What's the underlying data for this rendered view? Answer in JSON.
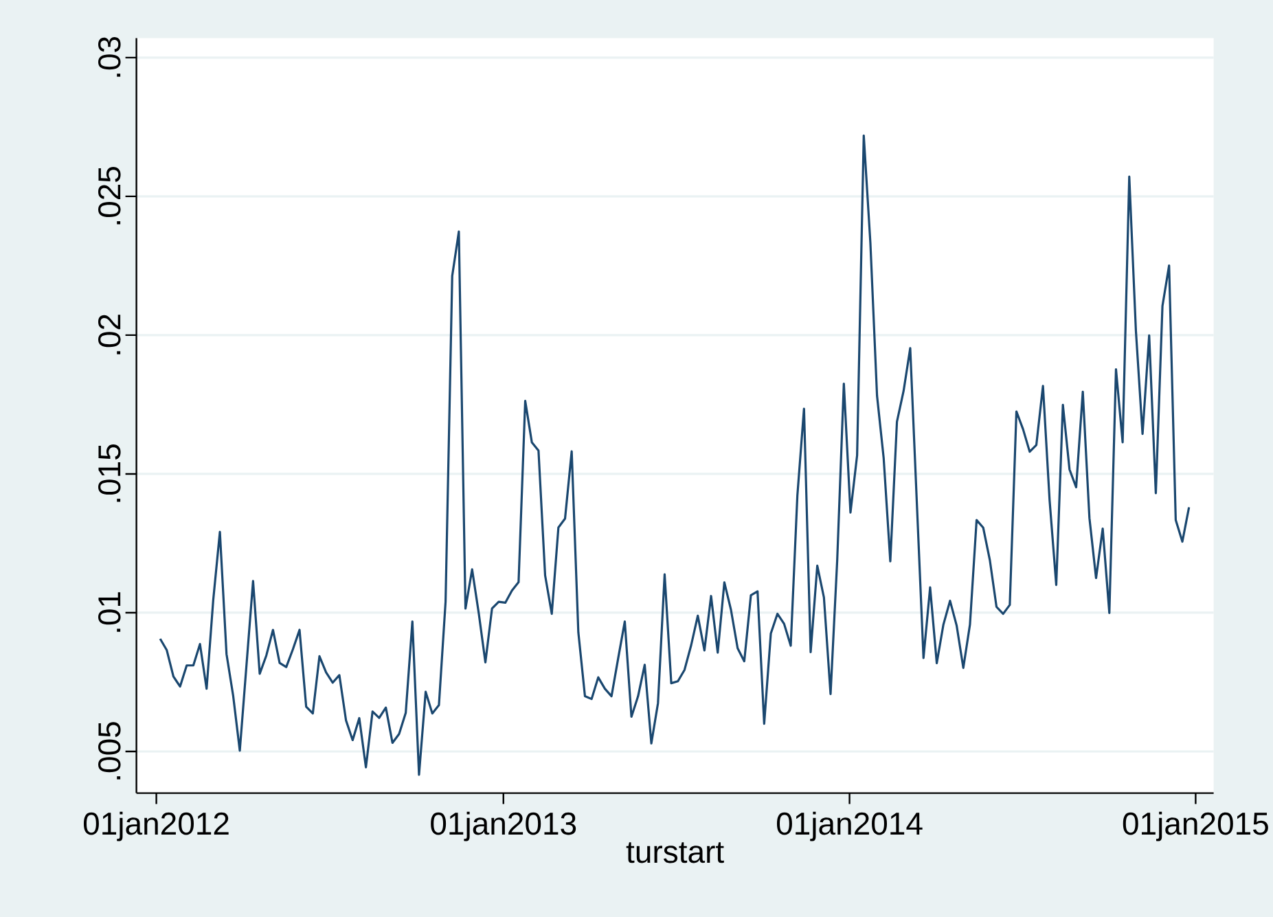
{
  "chart_data": {
    "type": "line",
    "xlabel": "turstart",
    "grid": "y",
    "xlim": [
      "2011-12-11",
      "2015-01-20"
    ],
    "ylim": [
      0.0035,
      0.0307
    ],
    "xticks": [
      {
        "value": "2012-01-01",
        "label": "01jan2012"
      },
      {
        "value": "2013-01-01",
        "label": "01jan2013"
      },
      {
        "value": "2014-01-01",
        "label": "01jan2014"
      },
      {
        "value": "2015-01-01",
        "label": "01jan2015"
      }
    ],
    "yticks": [
      {
        "value": 0.005,
        "label": ".005"
      },
      {
        "value": 0.01,
        "label": ".01"
      },
      {
        "value": 0.015,
        "label": ".015"
      },
      {
        "value": 0.02,
        "label": ".02"
      },
      {
        "value": 0.025,
        "label": ".025"
      },
      {
        "value": 0.03,
        "label": ".03"
      }
    ],
    "series": [
      {
        "color": "#1a476f",
        "x": [
          "2012-01-05",
          "2012-01-12",
          "2012-01-19",
          "2012-01-26",
          "2012-02-02",
          "2012-02-09",
          "2012-02-16",
          "2012-02-23",
          "2012-03-01",
          "2012-03-08",
          "2012-03-15",
          "2012-03-22",
          "2012-03-29",
          "2012-04-12",
          "2012-04-19",
          "2012-04-26",
          "2012-05-03",
          "2012-05-10",
          "2012-05-17",
          "2012-05-24",
          "2012-05-31",
          "2012-06-07",
          "2012-06-14",
          "2012-06-21",
          "2012-06-28",
          "2012-07-05",
          "2012-07-12",
          "2012-07-19",
          "2012-07-26",
          "2012-08-02",
          "2012-08-09",
          "2012-08-16",
          "2012-08-23",
          "2012-08-30",
          "2012-09-06",
          "2012-09-13",
          "2012-09-20",
          "2012-09-27",
          "2012-10-04",
          "2012-10-11",
          "2012-10-18",
          "2012-10-25",
          "2012-11-01",
          "2012-11-08",
          "2012-11-15",
          "2012-11-22",
          "2012-11-29",
          "2012-12-06",
          "2012-12-13",
          "2012-12-20",
          "2012-12-27",
          "2013-01-03",
          "2013-01-10",
          "2013-01-17",
          "2013-01-24",
          "2013-01-31",
          "2013-02-07",
          "2013-02-14",
          "2013-02-21",
          "2013-02-28",
          "2013-03-07",
          "2013-03-14",
          "2013-03-21",
          "2013-03-28",
          "2013-04-04",
          "2013-04-11",
          "2013-04-18",
          "2013-04-25",
          "2013-05-02",
          "2013-05-09",
          "2013-05-16",
          "2013-05-23",
          "2013-05-30",
          "2013-06-06",
          "2013-06-13",
          "2013-06-20",
          "2013-06-27",
          "2013-07-04",
          "2013-07-11",
          "2013-07-18",
          "2013-07-25",
          "2013-08-01",
          "2013-08-08",
          "2013-08-15",
          "2013-08-22",
          "2013-08-29",
          "2013-09-05",
          "2013-09-12",
          "2013-09-19",
          "2013-09-26",
          "2013-10-03",
          "2013-10-10",
          "2013-10-17",
          "2013-10-24",
          "2013-10-31",
          "2013-11-07",
          "2013-11-14",
          "2013-11-21",
          "2013-11-28",
          "2013-12-05",
          "2013-12-12",
          "2013-12-19",
          "2013-12-26",
          "2014-01-02",
          "2014-01-09",
          "2014-01-16",
          "2014-01-23",
          "2014-01-30",
          "2014-02-06",
          "2014-02-13",
          "2014-02-20",
          "2014-02-27",
          "2014-03-06",
          "2014-03-20",
          "2014-03-27",
          "2014-04-03",
          "2014-04-10",
          "2014-04-17",
          "2014-04-24",
          "2014-05-01",
          "2014-05-08",
          "2014-05-15",
          "2014-05-22",
          "2014-05-29",
          "2014-06-05",
          "2014-06-12",
          "2014-06-19",
          "2014-06-26",
          "2014-07-03",
          "2014-07-10",
          "2014-07-17",
          "2014-07-24",
          "2014-07-31",
          "2014-08-07",
          "2014-08-14",
          "2014-08-21",
          "2014-08-28",
          "2014-09-04",
          "2014-09-11",
          "2014-09-18",
          "2014-09-25",
          "2014-10-02",
          "2014-10-09",
          "2014-10-16",
          "2014-10-23",
          "2014-10-30",
          "2014-11-06",
          "2014-11-13",
          "2014-11-20",
          "2014-11-27",
          "2014-12-04",
          "2014-12-11",
          "2014-12-18",
          "2014-12-25"
        ],
        "values": [
          0.00906,
          0.00865,
          0.0077,
          0.00734,
          0.0081,
          0.0081,
          0.00887,
          0.00726,
          0.01046,
          0.01291,
          0.00851,
          0.00701,
          0.00503,
          0.01114,
          0.0078,
          0.00846,
          0.00938,
          0.00819,
          0.00804,
          0.00868,
          0.00938,
          0.00661,
          0.00637,
          0.00843,
          0.00785,
          0.00748,
          0.00775,
          0.00612,
          0.00541,
          0.0062,
          0.00443,
          0.00644,
          0.00621,
          0.00658,
          0.00531,
          0.00563,
          0.00639,
          0.00968,
          0.00416,
          0.00715,
          0.00637,
          0.00667,
          0.01039,
          0.02213,
          0.02373,
          0.01015,
          0.01156,
          0.00998,
          0.00821,
          0.01015,
          0.01039,
          0.01036,
          0.0108,
          0.0111,
          0.01763,
          0.01614,
          0.01584,
          0.01134,
          0.00996,
          0.01307,
          0.01339,
          0.01581,
          0.0093,
          0.00699,
          0.00689,
          0.00767,
          0.00726,
          0.00699,
          0.00835,
          0.00968,
          0.00625,
          0.00699,
          0.00812,
          0.00529,
          0.00674,
          0.01138,
          0.00746,
          0.00753,
          0.00794,
          0.00883,
          0.00989,
          0.00864,
          0.0106,
          0.00856,
          0.01109,
          0.0101,
          0.00872,
          0.00825,
          0.01063,
          0.01077,
          0.006,
          0.00925,
          0.00996,
          0.0096,
          0.00881,
          0.01422,
          0.01735,
          0.00858,
          0.01169,
          0.01055,
          0.00707,
          0.01188,
          0.01825,
          0.01361,
          0.01567,
          0.02719,
          0.02332,
          0.01782,
          0.01557,
          0.01185,
          0.01688,
          0.01799,
          0.01953,
          0.00837,
          0.01091,
          0.00818,
          0.00957,
          0.01043,
          0.00953,
          0.00801,
          0.00957,
          0.01334,
          0.01306,
          0.01189,
          0.01021,
          0.00996,
          0.01028,
          0.01725,
          0.01661,
          0.0158,
          0.01604,
          0.01817,
          0.01405,
          0.011,
          0.01749,
          0.01516,
          0.01452,
          0.01796,
          0.01341,
          0.01125,
          0.01303,
          0.00999,
          0.01877,
          0.01614,
          0.02571,
          0.02016,
          0.01644,
          0.01999,
          0.01431,
          0.02105,
          0.02251,
          0.01334,
          0.01256,
          0.0138
        ]
      }
    ]
  }
}
